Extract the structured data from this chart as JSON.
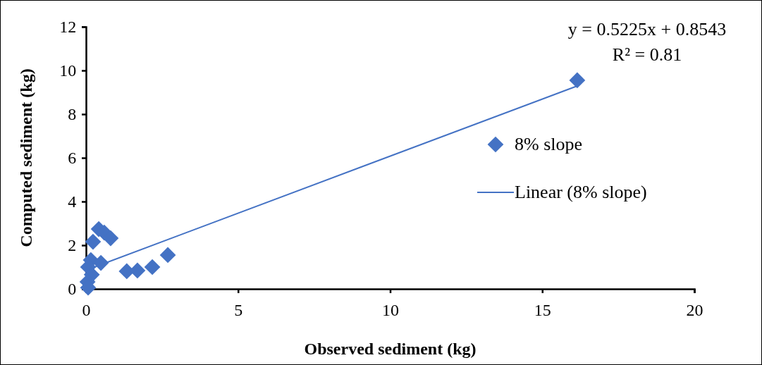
{
  "chart_data": {
    "type": "scatter",
    "xlabel": "Observed sediment (kg)",
    "ylabel": "Computed sediment (kg)",
    "xlim": [
      0,
      20
    ],
    "xticks": [
      0,
      5,
      10,
      15,
      20
    ],
    "ylim": [
      0,
      12
    ],
    "yticks": [
      0,
      2,
      4,
      6,
      8,
      10,
      12
    ],
    "grid": false,
    "legend": "right",
    "marker": "diamond",
    "series": [
      {
        "name": "8% slope",
        "color": "#4472c4",
        "x": [
          0.42,
          0.6,
          0.81,
          0.23,
          0.16,
          0.49,
          0.07,
          0.19,
          0.05,
          0.07,
          1.34,
          1.69,
          2.18,
          2.69,
          16.15
        ],
        "values": [
          2.74,
          2.58,
          2.32,
          2.16,
          1.32,
          1.19,
          1.0,
          0.65,
          0.32,
          0.06,
          0.81,
          0.84,
          1.0,
          1.55,
          9.55
        ]
      },
      {
        "name": "Linear (8% slope)",
        "type": "line",
        "color": "#4472c4",
        "x": [
          0.05,
          16.15
        ],
        "values": [
          0.88,
          9.29
        ],
        "marker": "none",
        "line_style": "solid"
      }
    ],
    "annotations": [
      "y = 0.5225x + 0.8543",
      "R² = 0.81"
    ]
  }
}
